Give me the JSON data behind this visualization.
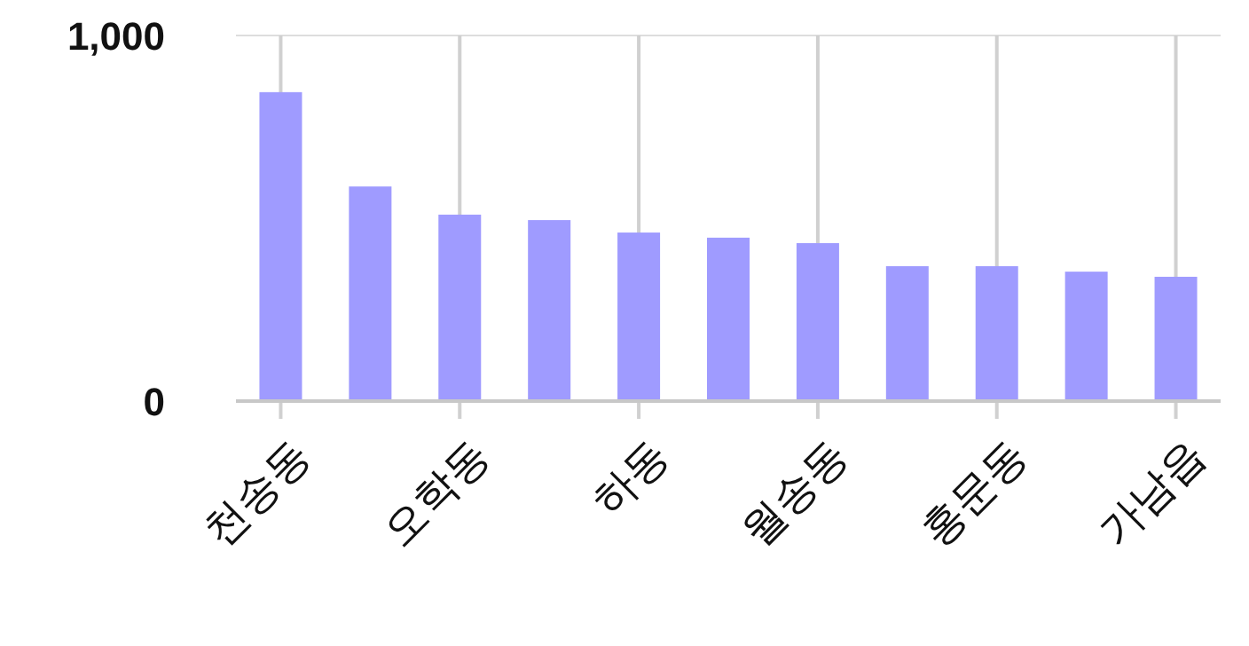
{
  "chart_data": {
    "type": "bar",
    "categories": [
      "천송동",
      null,
      "오학동",
      null,
      "하동",
      null,
      "월송동",
      null,
      "홍문동",
      null,
      "가남읍"
    ],
    "values": [
      845,
      587,
      510,
      495,
      461,
      447,
      432,
      369,
      369,
      354,
      340
    ],
    "color": "#9f9bff",
    "ylim": [
      0,
      1000
    ],
    "yticks": [
      0,
      {
        "value": 1000,
        "label": "1,000"
      }
    ],
    "grid": true
  }
}
